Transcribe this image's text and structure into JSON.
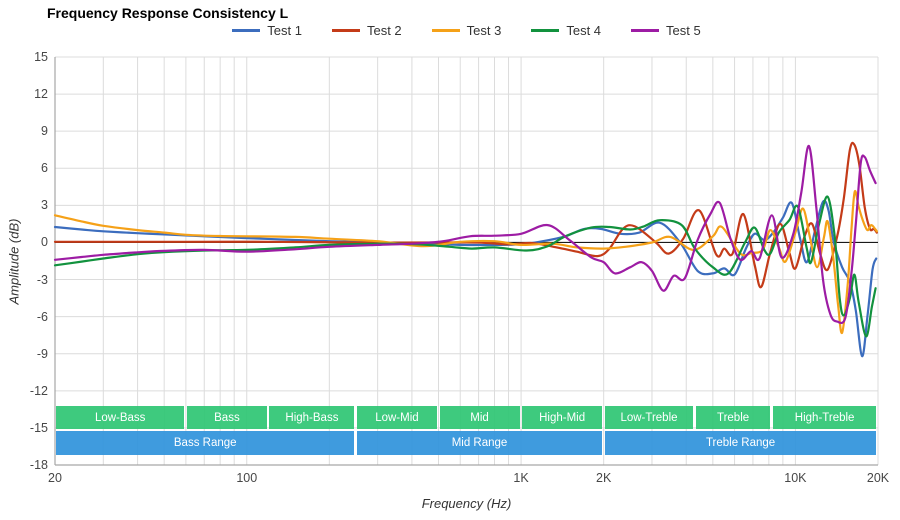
{
  "title": "Frequency Response Consistency L",
  "axes": {
    "x": {
      "title": "Frequency (Hz)",
      "scale": "log",
      "min": 20,
      "max": 20000,
      "ticks": [
        {
          "f": 20,
          "label": "20"
        },
        {
          "f": 100,
          "label": "100"
        },
        {
          "f": 1000,
          "label": "1K"
        },
        {
          "f": 2000,
          "label": "2K"
        },
        {
          "f": 10000,
          "label": "10K"
        },
        {
          "f": 20000,
          "label": "20K"
        }
      ],
      "minor_gridlines": [
        30,
        40,
        50,
        60,
        70,
        80,
        90,
        200,
        300,
        400,
        500,
        600,
        700,
        800,
        900,
        3000,
        4000,
        5000,
        6000,
        7000,
        8000,
        9000
      ]
    },
    "y": {
      "title": "Amplitude (dB)",
      "min": -18,
      "max": 15,
      "step": 3,
      "tick_labels": [
        "15",
        "12",
        "9",
        "6",
        "3",
        "0",
        "-3",
        "-6",
        "-9",
        "-12",
        "-15",
        "-18"
      ]
    }
  },
  "bands": {
    "sub_color": "rgba(46,197,115,0.92)",
    "range_color": "rgba(48,147,220,0.93)",
    "sub": [
      {
        "label": "Low-Bass",
        "from": 20,
        "to": 60
      },
      {
        "label": "Bass",
        "from": 60,
        "to": 120
      },
      {
        "label": "High-Bass",
        "from": 120,
        "to": 250
      },
      {
        "label": "Low-Mid",
        "from": 250,
        "to": 500
      },
      {
        "label": "Mid",
        "from": 500,
        "to": 1000
      },
      {
        "label": "High-Mid",
        "from": 1000,
        "to": 2000
      },
      {
        "label": "Low-Treble",
        "from": 2000,
        "to": 4300
      },
      {
        "label": "Treble",
        "from": 4300,
        "to": 8200
      },
      {
        "label": "High-Treble",
        "from": 8200,
        "to": 20000
      }
    ],
    "ranges": [
      {
        "label": "Bass Range",
        "from": 20,
        "to": 250
      },
      {
        "label": "Mid Range",
        "from": 250,
        "to": 2000
      },
      {
        "label": "Treble Range",
        "from": 2000,
        "to": 20000
      }
    ]
  },
  "colors": {
    "grid": "#dcdcdc",
    "axis": "#a6a6a6",
    "zero_line": "#1a1a1a"
  },
  "chart_data": {
    "type": "line",
    "title": "Frequency Response Consistency L",
    "xlabel": "Frequency (Hz)",
    "ylabel": "Amplitude (dB)",
    "x_scale": "log",
    "xlim": [
      20,
      20000
    ],
    "ylim": [
      -18,
      15
    ],
    "grid": true,
    "legend_position": "top",
    "zero_line": 0,
    "series": [
      {
        "name": "Test 1",
        "color": "#3c6dbe",
        "points": [
          [
            20,
            1.25
          ],
          [
            25,
            1.05
          ],
          [
            30,
            0.9
          ],
          [
            40,
            0.75
          ],
          [
            50,
            0.65
          ],
          [
            70,
            0.5
          ],
          [
            100,
            0.35
          ],
          [
            150,
            0.2
          ],
          [
            200,
            0.1
          ],
          [
            300,
            0
          ],
          [
            450,
            -0.1
          ],
          [
            600,
            -0.2
          ],
          [
            800,
            -0.2
          ],
          [
            1000,
            -0.15
          ],
          [
            1200,
            0.1
          ],
          [
            1450,
            0.5
          ],
          [
            1700,
            1.1
          ],
          [
            1950,
            1.1
          ],
          [
            2300,
            0.7
          ],
          [
            2700,
            0.8
          ],
          [
            3200,
            1.6
          ],
          [
            3800,
            0
          ],
          [
            4400,
            -2.3
          ],
          [
            5000,
            -2.5
          ],
          [
            5500,
            -2.1
          ],
          [
            6000,
            -2.6
          ],
          [
            6600,
            -0.5
          ],
          [
            7100,
            0.7
          ],
          [
            7700,
            0.2
          ],
          [
            8300,
            0.8
          ],
          [
            9000,
            2.0
          ],
          [
            9700,
            3.2
          ],
          [
            10400,
            0.3
          ],
          [
            11000,
            -1.6
          ],
          [
            11800,
            1.0
          ],
          [
            12600,
            3.3
          ],
          [
            13200,
            2.6
          ],
          [
            13800,
            0
          ],
          [
            14800,
            -2.0
          ],
          [
            15800,
            -3.2
          ],
          [
            16600,
            -5.5
          ],
          [
            17500,
            -9.2
          ],
          [
            18300,
            -6.0
          ],
          [
            19100,
            -2.2
          ],
          [
            19700,
            -1.3
          ]
        ]
      },
      {
        "name": "Test 2",
        "color": "#c43b18",
        "points": [
          [
            20,
            0.05
          ],
          [
            60,
            0.05
          ],
          [
            120,
            0.05
          ],
          [
            250,
            0
          ],
          [
            500,
            0
          ],
          [
            700,
            0
          ],
          [
            900,
            -0.15
          ],
          [
            1100,
            -0.05
          ],
          [
            1350,
            -0.4
          ],
          [
            1600,
            -0.75
          ],
          [
            1900,
            -1.1
          ],
          [
            2100,
            -0.5
          ],
          [
            2350,
            1.1
          ],
          [
            2600,
            1.3
          ],
          [
            3100,
            0
          ],
          [
            3450,
            -0.9
          ],
          [
            3900,
            0.3
          ],
          [
            4450,
            2.6
          ],
          [
            5150,
            -1.0
          ],
          [
            5500,
            -0.5
          ],
          [
            5900,
            -0.9
          ],
          [
            6450,
            2.3
          ],
          [
            7100,
            -1.8
          ],
          [
            7500,
            -3.6
          ],
          [
            8100,
            -0.8
          ],
          [
            8800,
            1.5
          ],
          [
            9500,
            -0.8
          ],
          [
            10000,
            -2.1
          ],
          [
            10800,
            0.5
          ],
          [
            11500,
            1.5
          ],
          [
            12300,
            -0.9
          ],
          [
            13100,
            -2.2
          ],
          [
            14200,
            0.5
          ],
          [
            15000,
            3.5
          ],
          [
            15800,
            7.5
          ],
          [
            16400,
            7.9
          ],
          [
            17100,
            6.3
          ],
          [
            17900,
            2.8
          ],
          [
            18700,
            1.1
          ],
          [
            19300,
            1.1
          ],
          [
            19800,
            0.8
          ]
        ]
      },
      {
        "name": "Test 3",
        "color": "#f5a118",
        "points": [
          [
            20,
            2.2
          ],
          [
            25,
            1.7
          ],
          [
            30,
            1.35
          ],
          [
            40,
            1.0
          ],
          [
            50,
            0.8
          ],
          [
            60,
            0.62
          ],
          [
            80,
            0.52
          ],
          [
            100,
            0.5
          ],
          [
            150,
            0.45
          ],
          [
            200,
            0.3
          ],
          [
            300,
            0.1
          ],
          [
            440,
            -0.3
          ],
          [
            600,
            0.05
          ],
          [
            800,
            0.1
          ],
          [
            1000,
            -0.2
          ],
          [
            1300,
            -0.1
          ],
          [
            1600,
            -0.4
          ],
          [
            2000,
            -0.5
          ],
          [
            2400,
            -0.35
          ],
          [
            3000,
            0
          ],
          [
            3500,
            0.45
          ],
          [
            4250,
            -0.6
          ],
          [
            5000,
            0.5
          ],
          [
            5400,
            1.25
          ],
          [
            6300,
            -0.9
          ],
          [
            6900,
            -0.85
          ],
          [
            7600,
            -0.6
          ],
          [
            8100,
            1.0
          ],
          [
            8700,
            -0.4
          ],
          [
            9200,
            -1.55
          ],
          [
            10000,
            0.8
          ],
          [
            10650,
            2.75
          ],
          [
            11300,
            0.4
          ],
          [
            12000,
            -2.0
          ],
          [
            12700,
            0.4
          ],
          [
            13100,
            1.7
          ],
          [
            13700,
            -1.0
          ],
          [
            14300,
            -5.0
          ],
          [
            14800,
            -7.3
          ],
          [
            15500,
            -3.5
          ],
          [
            16000,
            1.0
          ],
          [
            16450,
            4.1
          ],
          [
            17000,
            2.9
          ],
          [
            17600,
            1.8
          ],
          [
            18300,
            1.0
          ],
          [
            18900,
            1.4
          ],
          [
            19500,
            1.1
          ],
          [
            19800,
            0.9
          ]
        ]
      },
      {
        "name": "Test 4",
        "color": "#12923e",
        "points": [
          [
            20,
            -1.85
          ],
          [
            25,
            -1.55
          ],
          [
            30,
            -1.3
          ],
          [
            40,
            -0.95
          ],
          [
            50,
            -0.78
          ],
          [
            70,
            -0.65
          ],
          [
            100,
            -0.6
          ],
          [
            150,
            -0.4
          ],
          [
            200,
            -0.2
          ],
          [
            300,
            -0.1
          ],
          [
            420,
            -0.15
          ],
          [
            550,
            -0.35
          ],
          [
            660,
            -0.5
          ],
          [
            800,
            -0.4
          ],
          [
            1050,
            -0.65
          ],
          [
            1250,
            -0.3
          ],
          [
            1450,
            0.5
          ],
          [
            1800,
            1.2
          ],
          [
            2100,
            1.25
          ],
          [
            2500,
            1.05
          ],
          [
            2800,
            1.3
          ],
          [
            3200,
            1.8
          ],
          [
            3850,
            1.4
          ],
          [
            4300,
            -0.5
          ],
          [
            5000,
            -2.0
          ],
          [
            5700,
            -2.5
          ],
          [
            6550,
            0
          ],
          [
            7100,
            1.2
          ],
          [
            7700,
            -0.6
          ],
          [
            8100,
            -0.9
          ],
          [
            8700,
            0.8
          ],
          [
            9500,
            1.8
          ],
          [
            10200,
            2.9
          ],
          [
            11000,
            -0.5
          ],
          [
            11400,
            -1.6
          ],
          [
            12200,
            1.5
          ],
          [
            13100,
            3.7
          ],
          [
            13900,
            0.5
          ],
          [
            14500,
            -4.5
          ],
          [
            15000,
            -5.9
          ],
          [
            15800,
            -4.5
          ],
          [
            16400,
            -2.6
          ],
          [
            17000,
            -4.8
          ],
          [
            18100,
            -7.6
          ],
          [
            19000,
            -5.2
          ],
          [
            19600,
            -3.7
          ]
        ]
      },
      {
        "name": "Test 5",
        "color": "#9d1ca4",
        "points": [
          [
            20,
            -1.4
          ],
          [
            25,
            -1.18
          ],
          [
            30,
            -1.0
          ],
          [
            40,
            -0.8
          ],
          [
            50,
            -0.68
          ],
          [
            70,
            -0.6
          ],
          [
            100,
            -0.75
          ],
          [
            150,
            -0.55
          ],
          [
            200,
            -0.35
          ],
          [
            300,
            -0.2
          ],
          [
            400,
            -0.1
          ],
          [
            520,
            0.1
          ],
          [
            650,
            0.5
          ],
          [
            800,
            0.55
          ],
          [
            1000,
            0.7
          ],
          [
            1250,
            1.4
          ],
          [
            1500,
            0.2
          ],
          [
            1800,
            -1.2
          ],
          [
            2000,
            -1.6
          ],
          [
            2200,
            -2.5
          ],
          [
            2500,
            -2.0
          ],
          [
            2750,
            -1.6
          ],
          [
            3000,
            -2.3
          ],
          [
            3300,
            -3.9
          ],
          [
            3600,
            -2.7
          ],
          [
            3950,
            -2.9
          ],
          [
            4400,
            0.2
          ],
          [
            4900,
            2.3
          ],
          [
            5300,
            3.2
          ],
          [
            5800,
            0.3
          ],
          [
            6300,
            -1.4
          ],
          [
            6900,
            -0.7
          ],
          [
            7400,
            -1.3
          ],
          [
            8200,
            2.2
          ],
          [
            8900,
            -1.2
          ],
          [
            9800,
            0.6
          ],
          [
            10500,
            4.0
          ],
          [
            11200,
            7.8
          ],
          [
            11900,
            3.0
          ],
          [
            12600,
            -3.0
          ],
          [
            13400,
            -5.8
          ],
          [
            14200,
            -6.4
          ],
          [
            15200,
            -6.1
          ],
          [
            16000,
            -2.5
          ],
          [
            16600,
            1.5
          ],
          [
            17300,
            6.4
          ],
          [
            17900,
            6.9
          ],
          [
            18700,
            5.8
          ],
          [
            19600,
            4.8
          ]
        ]
      }
    ]
  }
}
